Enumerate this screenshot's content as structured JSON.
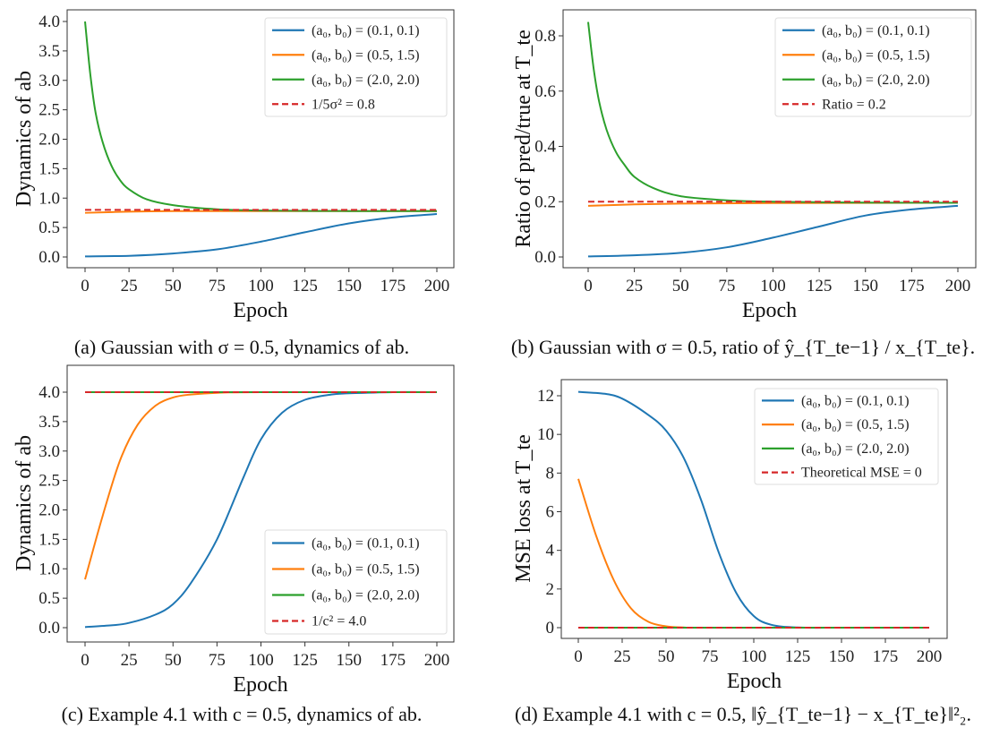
{
  "colors": {
    "blue": "#1f77b4",
    "orange": "#ff7f0e",
    "green": "#2ca02c",
    "red": "#d62728"
  },
  "chart_data": [
    {
      "type": "line",
      "caption": "(a) Gaussian with σ = 0.5, dynamics of ab.",
      "xlabel": "Epoch",
      "ylabel": "Dynamics of ab",
      "xlim": [
        0,
        200
      ],
      "ylim": [
        0,
        4
      ],
      "xticks": [
        "0",
        "25",
        "50",
        "75",
        "100",
        "125",
        "150",
        "175",
        "200"
      ],
      "yticks": [
        "0.0",
        "0.5",
        "1.0",
        "1.5",
        "2.0",
        "2.5",
        "3.0",
        "3.5",
        "4.0"
      ],
      "legend_position": "upper-right",
      "grid": false,
      "series": [
        {
          "name": "(a₀, b₀) = (0.1, 0.1)",
          "color": "#1f77b4",
          "style": "solid",
          "x": [
            0,
            25,
            50,
            75,
            100,
            125,
            150,
            175,
            200
          ],
          "y": [
            0.01,
            0.02,
            0.06,
            0.13,
            0.26,
            0.42,
            0.57,
            0.67,
            0.73
          ]
        },
        {
          "name": "(a₀, b₀) = (0.5, 1.5)",
          "color": "#ff7f0e",
          "style": "solid",
          "x": [
            0,
            25,
            50,
            100,
            200
          ],
          "y": [
            0.75,
            0.77,
            0.78,
            0.78,
            0.78
          ]
        },
        {
          "name": "(a₀, b₀) = (2.0, 2.0)",
          "color": "#2ca02c",
          "style": "solid",
          "x": [
            0,
            3,
            6,
            10,
            15,
            20,
            25,
            35,
            50,
            75,
            100,
            150,
            200
          ],
          "y": [
            4.0,
            3.1,
            2.45,
            1.95,
            1.55,
            1.3,
            1.15,
            0.98,
            0.88,
            0.81,
            0.79,
            0.78,
            0.78
          ]
        },
        {
          "name": "1/5σ² = 0.8",
          "color": "#d62728",
          "style": "dashed",
          "x": [
            0,
            200
          ],
          "y": [
            0.8,
            0.8
          ]
        }
      ]
    },
    {
      "type": "line",
      "caption": "(b) Gaussian with σ = 0.5, ratio of ŷ_{T_te−1} / x_{T_te}.",
      "xlabel": "Epoch",
      "ylabel": "Ratio of pred/true at T_te",
      "xlim": [
        0,
        200
      ],
      "ylim": [
        0,
        0.8
      ],
      "xticks": [
        "0",
        "25",
        "50",
        "75",
        "100",
        "125",
        "150",
        "175",
        "200"
      ],
      "yticks": [
        "0.0",
        "0.2",
        "0.4",
        "0.6",
        "0.8"
      ],
      "legend_position": "upper-right",
      "grid": false,
      "series": [
        {
          "name": "(a₀, b₀) = (0.1, 0.1)",
          "color": "#1f77b4",
          "style": "solid",
          "x": [
            0,
            25,
            50,
            75,
            100,
            125,
            150,
            175,
            200
          ],
          "y": [
            0.002,
            0.006,
            0.015,
            0.035,
            0.07,
            0.11,
            0.15,
            0.172,
            0.185
          ]
        },
        {
          "name": "(a₀, b₀) = (0.5, 1.5)",
          "color": "#ff7f0e",
          "style": "solid",
          "x": [
            0,
            25,
            50,
            100,
            200
          ],
          "y": [
            0.185,
            0.19,
            0.193,
            0.195,
            0.196
          ]
        },
        {
          "name": "(a₀, b₀) = (2.0, 2.0)",
          "color": "#2ca02c",
          "style": "solid",
          "x": [
            0,
            3,
            6,
            10,
            15,
            20,
            25,
            35,
            50,
            75,
            100,
            150,
            200
          ],
          "y": [
            0.85,
            0.68,
            0.56,
            0.46,
            0.38,
            0.33,
            0.29,
            0.25,
            0.22,
            0.205,
            0.2,
            0.197,
            0.196
          ]
        },
        {
          "name": "Ratio = 0.2",
          "color": "#d62728",
          "style": "dashed",
          "x": [
            0,
            200
          ],
          "y": [
            0.2,
            0.2
          ]
        }
      ]
    },
    {
      "type": "line",
      "caption": "(c) Example 4.1 with c = 0.5, dynamics of ab.",
      "xlabel": "Epoch",
      "ylabel": "Dynamics of ab",
      "xlim": [
        0,
        200
      ],
      "ylim": [
        0,
        4
      ],
      "xticks": [
        "0",
        "25",
        "50",
        "75",
        "100",
        "125",
        "150",
        "175",
        "200"
      ],
      "yticks": [
        "0.0",
        "0.5",
        "1.0",
        "1.5",
        "2.0",
        "2.5",
        "3.0",
        "3.5",
        "4.0"
      ],
      "legend_position": "lower-right",
      "grid": false,
      "series": [
        {
          "name": "(a₀, b₀) = (0.1, 0.1)",
          "color": "#1f77b4",
          "style": "solid",
          "x": [
            0,
            15,
            25,
            40,
            50,
            60,
            75,
            90,
            100,
            112,
            125,
            140,
            150,
            175,
            200
          ],
          "y": [
            0.01,
            0.04,
            0.08,
            0.22,
            0.4,
            0.75,
            1.5,
            2.55,
            3.2,
            3.65,
            3.87,
            3.96,
            3.98,
            4.0,
            4.0
          ]
        },
        {
          "name": "(a₀, b₀) = (0.5, 1.5)",
          "color": "#ff7f0e",
          "style": "solid",
          "x": [
            0,
            10,
            20,
            30,
            40,
            50,
            60,
            75,
            100,
            200
          ],
          "y": [
            0.82,
            1.9,
            2.85,
            3.45,
            3.77,
            3.91,
            3.96,
            3.99,
            4.0,
            4.0
          ]
        },
        {
          "name": "(a₀, b₀) = (2.0, 2.0)",
          "color": "#2ca02c",
          "style": "solid",
          "x": [
            0,
            200
          ],
          "y": [
            4.0,
            4.0
          ]
        },
        {
          "name": "1/c² = 4.0",
          "color": "#d62728",
          "style": "dashed",
          "x": [
            0,
            200
          ],
          "y": [
            4.0,
            4.0
          ]
        }
      ]
    },
    {
      "type": "line",
      "caption": "(d) Example 4.1 with c = 0.5, ‖ŷ_{T_te−1} − x_{T_te}‖²₂.",
      "xlabel": "Epoch",
      "ylabel": "MSE loss at T_te",
      "xlim": [
        0,
        200
      ],
      "ylim": [
        0,
        12
      ],
      "xticks": [
        "0",
        "25",
        "50",
        "75",
        "100",
        "125",
        "150",
        "175",
        "200"
      ],
      "yticks": [
        "0",
        "2",
        "4",
        "6",
        "8",
        "10",
        "12"
      ],
      "legend_position": "upper-right",
      "grid": false,
      "series": [
        {
          "name": "(a₀, b₀) = (0.1, 0.1)",
          "color": "#1f77b4",
          "style": "solid",
          "x": [
            0,
            15,
            25,
            40,
            50,
            60,
            70,
            80,
            90,
            100,
            110,
            125,
            150,
            200
          ],
          "y": [
            12.2,
            12.1,
            11.85,
            11.0,
            10.2,
            8.8,
            6.6,
            3.9,
            1.8,
            0.6,
            0.15,
            0.01,
            0,
            0
          ]
        },
        {
          "name": "(a₀, b₀) = (0.5, 1.5)",
          "color": "#ff7f0e",
          "style": "solid",
          "x": [
            0,
            10,
            20,
            30,
            40,
            50,
            60,
            75,
            200
          ],
          "y": [
            7.7,
            4.8,
            2.5,
            1.0,
            0.3,
            0.07,
            0.01,
            0,
            0
          ]
        },
        {
          "name": "(a₀, b₀) = (2.0, 2.0)",
          "color": "#2ca02c",
          "style": "solid",
          "x": [
            0,
            200
          ],
          "y": [
            0,
            0
          ]
        },
        {
          "name": "Theoretical MSE = 0",
          "color": "#d62728",
          "style": "dashed",
          "x": [
            0,
            200
          ],
          "y": [
            0,
            0
          ]
        }
      ]
    }
  ]
}
